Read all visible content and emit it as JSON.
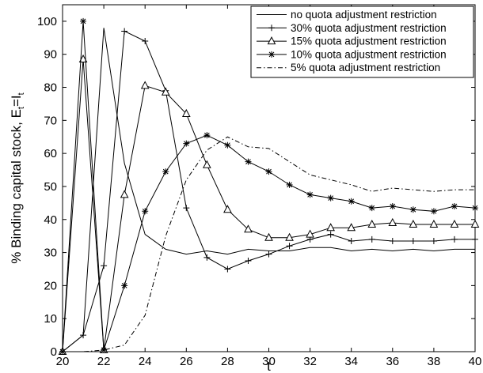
{
  "chart_data": {
    "type": "line",
    "xlabel": "t",
    "ylabel_main": "% Binding capital stock, E",
    "ylabel_sub1": "t",
    "ylabel_eq": "=I",
    "ylabel_sub2": "t",
    "xlim": [
      20,
      40
    ],
    "ylim": [
      0,
      105
    ],
    "x_ticks": [
      20,
      22,
      24,
      26,
      28,
      30,
      32,
      34,
      36,
      38,
      40
    ],
    "y_ticks": [
      0,
      10,
      20,
      30,
      40,
      50,
      60,
      70,
      80,
      90,
      100
    ],
    "grid": false,
    "legend_position": "top-right",
    "series": [
      {
        "name": "no quota adjustment restriction",
        "marker": "none",
        "dash": "solid",
        "points": [
          [
            20,
            0
          ],
          [
            21,
            5
          ],
          [
            22,
            98
          ],
          [
            23,
            57
          ],
          [
            24,
            35.5
          ],
          [
            25,
            31
          ],
          [
            26,
            29.5
          ],
          [
            27,
            30.5
          ],
          [
            28,
            29.5
          ],
          [
            29,
            31
          ],
          [
            30,
            30.5
          ],
          [
            31,
            30.5
          ],
          [
            32,
            31.5
          ],
          [
            33,
            31.5
          ],
          [
            34,
            30.5
          ],
          [
            35,
            31
          ],
          [
            36,
            30.5
          ],
          [
            37,
            31
          ],
          [
            38,
            30.5
          ],
          [
            39,
            31
          ],
          [
            40,
            31
          ]
        ]
      },
      {
        "name": "30% quota adjustment restriction",
        "marker": "plus",
        "dash": "solid",
        "points": [
          [
            20,
            0
          ],
          [
            21,
            5
          ],
          [
            22,
            26
          ],
          [
            23,
            97
          ],
          [
            24,
            94
          ],
          [
            25,
            79
          ],
          [
            26,
            43.5
          ],
          [
            27,
            28.5
          ],
          [
            28,
            25
          ],
          [
            29,
            27.5
          ],
          [
            30,
            29.5
          ],
          [
            31,
            32
          ],
          [
            32,
            34
          ],
          [
            33,
            35.5
          ],
          [
            34,
            33.5
          ],
          [
            35,
            34
          ],
          [
            36,
            33.5
          ],
          [
            37,
            33.5
          ],
          [
            38,
            33.5
          ],
          [
            39,
            34
          ],
          [
            40,
            34
          ]
        ]
      },
      {
        "name": "15% quota adjustment restriction",
        "marker": "triangle",
        "dash": "solid",
        "points": [
          [
            20,
            0
          ],
          [
            21,
            88.5
          ],
          [
            22,
            0.5
          ],
          [
            23,
            47.5
          ],
          [
            24,
            80.5
          ],
          [
            25,
            78.5
          ],
          [
            26,
            72
          ],
          [
            27,
            56.5
          ],
          [
            28,
            43
          ],
          [
            29,
            37
          ],
          [
            30,
            34.5
          ],
          [
            31,
            34.5
          ],
          [
            32,
            35.5
          ],
          [
            33,
            37.5
          ],
          [
            34,
            37.5
          ],
          [
            35,
            38.5
          ],
          [
            36,
            39
          ],
          [
            37,
            38.5
          ],
          [
            38,
            38.5
          ],
          [
            39,
            38.5
          ],
          [
            40,
            38.5
          ]
        ]
      },
      {
        "name": "10% quota adjustment restriction",
        "marker": "star",
        "dash": "solid",
        "points": [
          [
            20,
            0
          ],
          [
            21,
            100
          ],
          [
            22,
            0.5
          ],
          [
            23,
            20
          ],
          [
            24,
            42.5
          ],
          [
            25,
            54.5
          ],
          [
            26,
            63
          ],
          [
            27,
            65.5
          ],
          [
            28,
            62.5
          ],
          [
            29,
            57.5
          ],
          [
            30,
            54.5
          ],
          [
            31,
            50.5
          ],
          [
            32,
            47.5
          ],
          [
            33,
            46.5
          ],
          [
            34,
            45.5
          ],
          [
            35,
            43.5
          ],
          [
            36,
            44
          ],
          [
            37,
            43
          ],
          [
            38,
            42.5
          ],
          [
            39,
            44
          ],
          [
            40,
            43.5
          ]
        ]
      },
      {
        "name": "5% quota adjustment restriction",
        "marker": "none",
        "dash": "dashdot",
        "points": [
          [
            20,
            0
          ],
          [
            21,
            0
          ],
          [
            22,
            0.5
          ],
          [
            23,
            2
          ],
          [
            24,
            11
          ],
          [
            25,
            35
          ],
          [
            26,
            52
          ],
          [
            27,
            61
          ],
          [
            28,
            65
          ],
          [
            29,
            62
          ],
          [
            30,
            61.5
          ],
          [
            31,
            57.5
          ],
          [
            32,
            53.5
          ],
          [
            33,
            52
          ],
          [
            34,
            50.5
          ],
          [
            35,
            48.5
          ],
          [
            36,
            49.5
          ],
          [
            37,
            49
          ],
          [
            38,
            48.5
          ],
          [
            39,
            49
          ],
          [
            40,
            49
          ]
        ]
      }
    ]
  },
  "style": {
    "line_color": "#000000",
    "background": "#ffffff"
  }
}
